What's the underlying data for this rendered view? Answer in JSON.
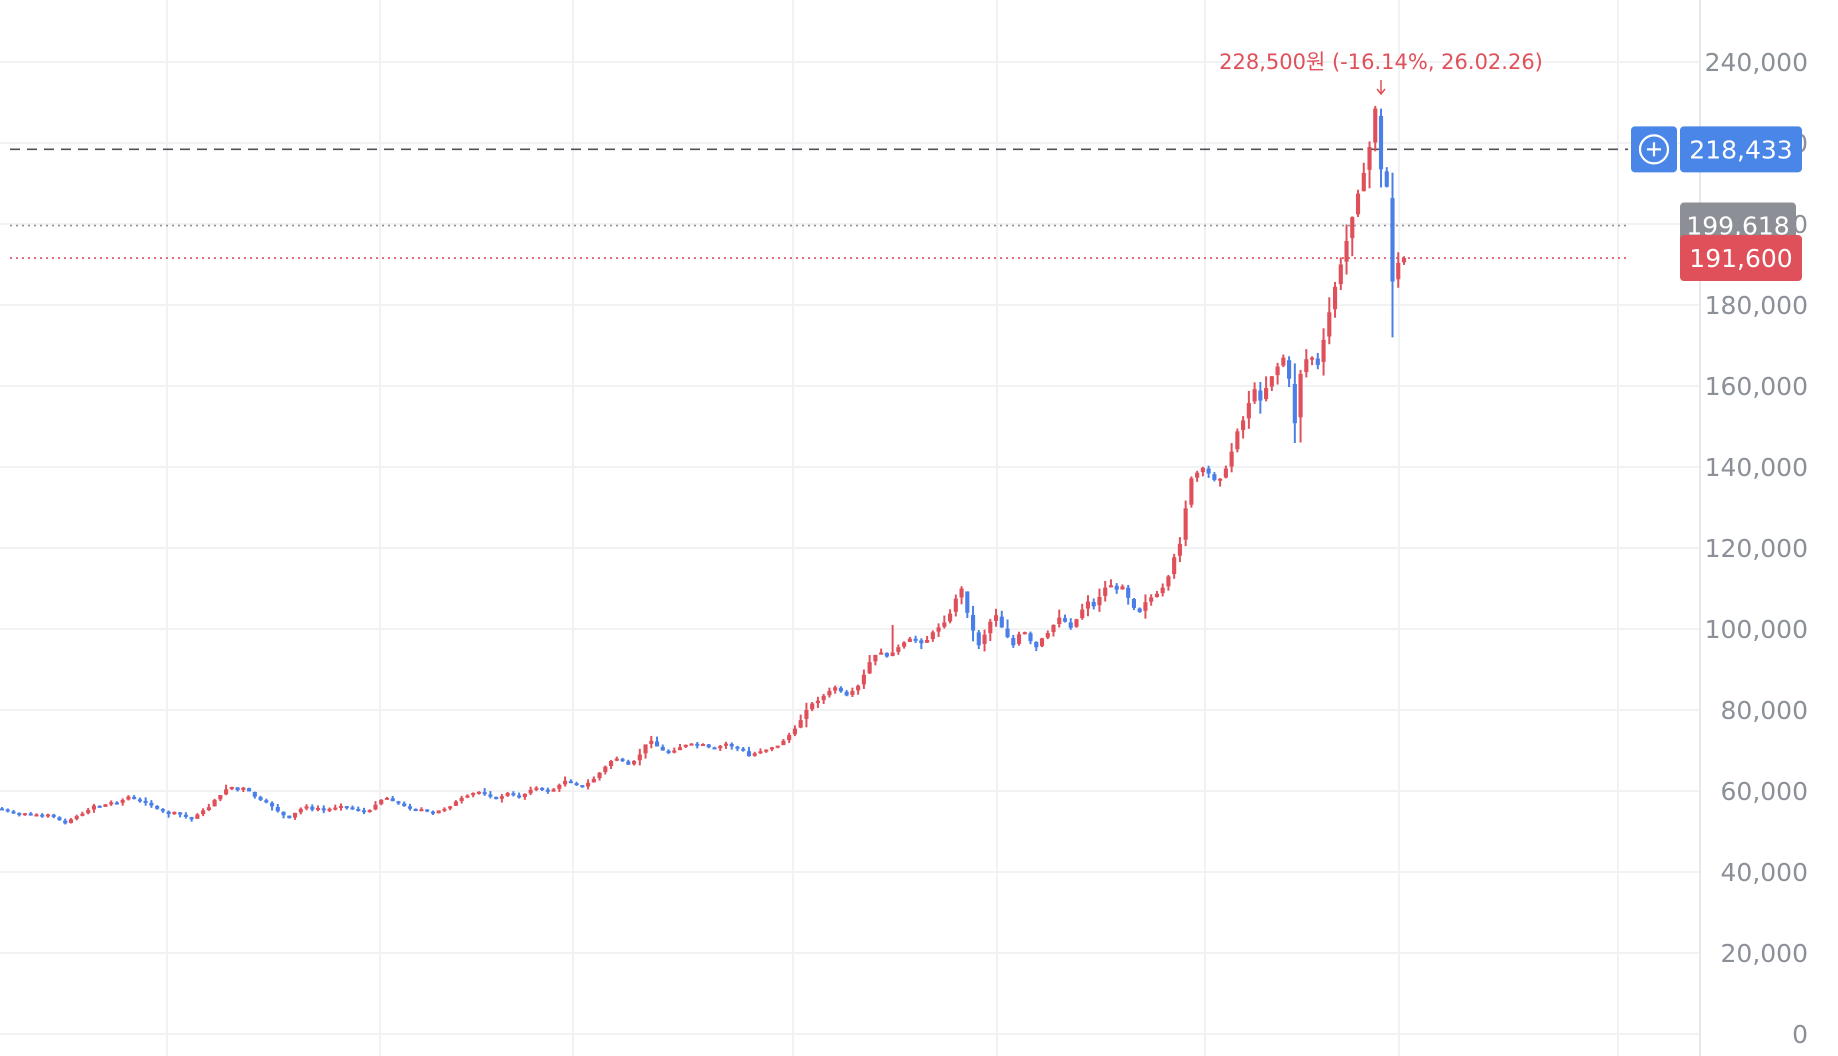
{
  "chart_data": {
    "type": "candlestick",
    "title": "",
    "xlabel": "",
    "ylabel": "",
    "ylim": [
      0,
      250000
    ],
    "y_ticks": [
      "240,000",
      "220,000",
      "200,000",
      "180,000",
      "160,000",
      "140,000",
      "120,000",
      "100,000",
      "80,000",
      "60,000",
      "40,000",
      "20,000",
      "0"
    ],
    "grid": true,
    "price_levels": [
      {
        "name": "crosshair",
        "value": 218433,
        "label": "218,433",
        "style": "dashed",
        "color": "#4d5158",
        "badge_color": "#4a86e8"
      },
      {
        "name": "average",
        "value": 199618,
        "label": "199,618",
        "style": "dotted",
        "color": "#8c9096",
        "badge_color": "#8c9096"
      },
      {
        "name": "current",
        "value": 191600,
        "label": "191,600",
        "style": "dotted",
        "color": "#e0505a",
        "badge_color": "#e0505a"
      }
    ],
    "annotation": {
      "text": "228,500원 (-16.14%, 26.02.26)",
      "value": 228500
    },
    "series": {
      "closes": [
        55500,
        55000,
        54600,
        54200,
        54500,
        54000,
        54200,
        53800,
        54200,
        53600,
        52800,
        52000,
        53000,
        53800,
        54400,
        55300,
        56400,
        56000,
        56700,
        57200,
        57000,
        57800,
        58600,
        58000,
        57600,
        57200,
        56400,
        55600,
        55000,
        54300,
        54800,
        54200,
        53600,
        53000,
        54200,
        55200,
        56000,
        57800,
        59000,
        60400,
        61000,
        60200,
        60800,
        59900,
        58600,
        57800,
        57200,
        56200,
        55000,
        54000,
        53300,
        54600,
        55600,
        56200,
        55400,
        55800,
        55200,
        55600,
        55900,
        56300,
        56000,
        55600,
        55300,
        54800,
        55300,
        56600,
        57800,
        58300,
        57500,
        57000,
        56300,
        55600,
        55300,
        55500,
        55000,
        54400,
        55200,
        55600,
        56200,
        57400,
        58300,
        58900,
        59500,
        59800,
        59200,
        58600,
        58000,
        58700,
        59500,
        59000,
        58400,
        59300,
        60300,
        60800,
        60400,
        59800,
        60400,
        61500,
        62500,
        62000,
        61500,
        61000,
        62000,
        63000,
        64500,
        66000,
        67400,
        68000,
        67400,
        66500,
        67400,
        69000,
        71500,
        72400,
        71000,
        70000,
        69400,
        70000,
        70800,
        71400,
        71700,
        71300,
        71600,
        70800,
        70500,
        71100,
        71700,
        71000,
        70500,
        70000,
        68600,
        69300,
        69800,
        70200,
        70800,
        71200,
        72400,
        73800,
        75400,
        77500,
        80000,
        81600,
        82300,
        83500,
        84700,
        85600,
        84600,
        83600,
        84700,
        86000,
        88700,
        91800,
        93600,
        94200,
        93200,
        94200,
        95500,
        96700,
        97600,
        97300,
        96500,
        97300,
        99200,
        100400,
        101600,
        103800,
        107500,
        110000,
        104000,
        99600,
        96000,
        98600,
        101800,
        103400,
        100400,
        98000,
        96000,
        98700,
        99200,
        97000,
        95500,
        97700,
        99000,
        101000,
        102800,
        101800,
        100300,
        102400,
        104800,
        106800,
        105600,
        107900,
        110200,
        110800,
        109700,
        110500,
        107700,
        105200,
        104200,
        106600,
        107800,
        108700,
        110200,
        113000,
        117700,
        121000,
        129800,
        137200,
        138600,
        139800,
        138400,
        136800,
        137100,
        139600,
        143800,
        148800,
        151500,
        155800,
        159200,
        156400,
        159500,
        162400,
        164800,
        167000,
        161800,
        150800,
        163000,
        166600,
        167000,
        165200,
        171400,
        178200,
        184500,
        190000,
        195800,
        201700,
        207500,
        212600,
        219000,
        228500,
        213500,
        209200,
        185800,
        190400,
        191600
      ],
      "note": "approximate daily closes read from the candlestick chart, oldest to newest"
    }
  }
}
